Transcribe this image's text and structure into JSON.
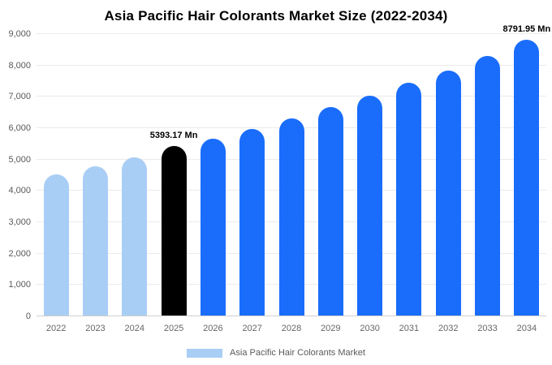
{
  "chart_data": {
    "type": "bar",
    "title": "Asia Pacific Hair Colorants Market Size (2022-2034)",
    "categories": [
      "2022",
      "2023",
      "2024",
      "2025",
      "2026",
      "2027",
      "2028",
      "2029",
      "2030",
      "2031",
      "2032",
      "2033",
      "2034"
    ],
    "values": [
      4500,
      4750,
      5050,
      5393.17,
      5640,
      5950,
      6280,
      6640,
      7000,
      7410,
      7800,
      8280,
      8791.95
    ],
    "bar_colors": [
      "#a9cef5",
      "#a9cef5",
      "#a9cef5",
      "#000000",
      "#1a6dfb",
      "#1a6dfb",
      "#1a6dfb",
      "#1a6dfb",
      "#1a6dfb",
      "#1a6dfb",
      "#1a6dfb",
      "#1a6dfb",
      "#1a6dfb"
    ],
    "annotations": [
      {
        "category": "2025",
        "label": "5393.17 Mn"
      },
      {
        "category": "2034",
        "label": "8791.95 Mn"
      }
    ],
    "ylim": [
      0,
      9000
    ],
    "ytick_interval": 1000,
    "grid": true,
    "legend_position": "bottom",
    "xlabel": "",
    "ylabel": "",
    "legend": [
      {
        "label": "Asia Pacific Hair Colorants Market",
        "color": "#a9cef5"
      }
    ]
  }
}
